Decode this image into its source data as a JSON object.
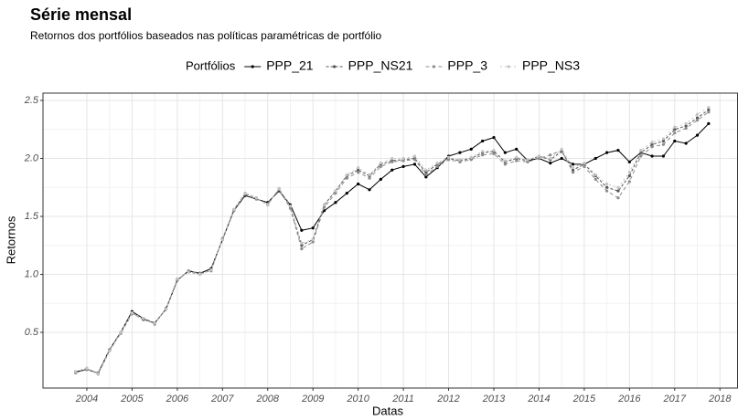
{
  "chart_data": {
    "type": "line",
    "title": "Série mensal",
    "subtitle": "Retornos dos portfólios baseados nas políticas paramétricas de portfólio",
    "legend_title": "Portfólios",
    "x_label": "Datas",
    "y_label": "Retornos",
    "x": [
      2003.75,
      2004,
      2004.25,
      2004.5,
      2004.75,
      2005,
      2005.25,
      2005.5,
      2005.75,
      2006,
      2006.25,
      2006.5,
      2006.75,
      2007,
      2007.25,
      2007.5,
      2007.75,
      2008,
      2008.25,
      2008.5,
      2008.75,
      2009,
      2009.25,
      2009.5,
      2009.75,
      2010,
      2010.25,
      2010.5,
      2010.75,
      2011,
      2011.25,
      2011.5,
      2011.75,
      2012,
      2012.25,
      2012.5,
      2012.75,
      2013,
      2013.25,
      2013.5,
      2013.75,
      2014,
      2014.25,
      2014.5,
      2014.75,
      2015,
      2015.25,
      2015.5,
      2015.75,
      2016,
      2016.25,
      2016.5,
      2016.75,
      2017,
      2017.25,
      2017.5,
      2017.75
    ],
    "series": [
      {
        "name": "PPP_21",
        "color": "#000000",
        "dash": "",
        "values": [
          0.16,
          0.18,
          0.15,
          0.35,
          0.5,
          0.68,
          0.62,
          0.58,
          0.7,
          0.95,
          1.03,
          1.01,
          1.05,
          1.3,
          1.55,
          1.68,
          1.65,
          1.62,
          1.72,
          1.6,
          1.38,
          1.4,
          1.55,
          1.62,
          1.7,
          1.78,
          1.73,
          1.82,
          1.9,
          1.93,
          1.95,
          1.84,
          1.92,
          2.02,
          2.05,
          2.08,
          2.15,
          2.18,
          2.05,
          2.08,
          1.98,
          2.0,
          1.96,
          2.0,
          1.95,
          1.95,
          2.0,
          2.05,
          2.07,
          1.97,
          2.05,
          2.02,
          2.02,
          2.15,
          2.13,
          2.2,
          2.3
        ]
      },
      {
        "name": "PPP_NS21",
        "color": "#555555",
        "dash": "3 2",
        "values": [
          0.16,
          0.19,
          0.14,
          0.34,
          0.5,
          0.67,
          0.61,
          0.58,
          0.7,
          0.96,
          1.02,
          1.0,
          1.04,
          1.3,
          1.56,
          1.7,
          1.66,
          1.6,
          1.74,
          1.58,
          1.25,
          1.3,
          1.6,
          1.72,
          1.85,
          1.9,
          1.85,
          1.95,
          1.98,
          1.99,
          2.0,
          1.88,
          1.95,
          2.0,
          1.98,
          2.0,
          2.05,
          2.06,
          1.97,
          2.0,
          1.98,
          2.02,
          1.99,
          2.06,
          1.9,
          1.95,
          1.85,
          1.75,
          1.72,
          1.85,
          2.05,
          2.12,
          2.15,
          2.25,
          2.28,
          2.35,
          2.42
        ]
      },
      {
        "name": "PPP_3",
        "color": "#8c8c8c",
        "dash": "4 3",
        "values": [
          0.15,
          0.18,
          0.15,
          0.35,
          0.49,
          0.66,
          0.62,
          0.57,
          0.71,
          0.95,
          1.03,
          1.01,
          1.03,
          1.31,
          1.55,
          1.69,
          1.65,
          1.61,
          1.73,
          1.57,
          1.22,
          1.28,
          1.58,
          1.7,
          1.83,
          1.88,
          1.83,
          1.93,
          1.97,
          1.98,
          1.99,
          1.86,
          1.93,
          1.99,
          1.97,
          1.99,
          2.03,
          2.04,
          1.95,
          1.98,
          1.97,
          2.0,
          2.03,
          2.07,
          1.88,
          1.93,
          1.82,
          1.72,
          1.66,
          1.8,
          2.02,
          2.1,
          2.12,
          2.22,
          2.26,
          2.33,
          2.4
        ]
      },
      {
        "name": "PPP_NS3",
        "color": "#c4c4c4",
        "dash": "2 3",
        "values": [
          0.16,
          0.19,
          0.14,
          0.34,
          0.5,
          0.67,
          0.62,
          0.58,
          0.7,
          0.96,
          1.02,
          1.0,
          1.04,
          1.3,
          1.56,
          1.7,
          1.66,
          1.6,
          1.74,
          1.59,
          1.27,
          1.3,
          1.6,
          1.72,
          1.86,
          1.92,
          1.86,
          1.96,
          2.0,
          2.0,
          2.02,
          1.9,
          1.96,
          2.01,
          1.99,
          2.01,
          2.06,
          2.07,
          1.98,
          2.01,
          1.99,
          2.02,
          2.0,
          2.08,
          1.92,
          1.96,
          1.86,
          1.78,
          1.75,
          1.88,
          2.07,
          2.14,
          2.17,
          2.27,
          2.3,
          2.38,
          2.44
        ]
      }
    ],
    "xlim": [
      2003.03,
      2018.4
    ],
    "xticks": [
      2004,
      2005,
      2006,
      2007,
      2008,
      2009,
      2010,
      2011,
      2012,
      2013,
      2014,
      2015,
      2016,
      2017,
      2018
    ],
    "ylim": [
      0.02,
      2.563
    ],
    "yticks": [
      0.5,
      1.5,
      {
        "value": 1,
        "label": "1.0"
      },
      {
        "value": 2,
        "label": "2.0"
      },
      2.5
    ],
    "grid": true
  }
}
